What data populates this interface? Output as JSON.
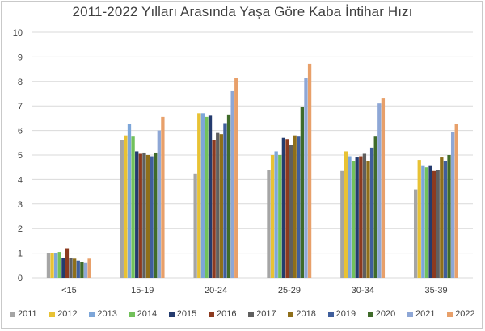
{
  "chart_data": {
    "type": "bar",
    "title": "2011-2022 Yılları Arasında Yaşa Göre Kaba İntihar Hızı",
    "xlabel": "",
    "ylabel": "",
    "ylim": [
      0,
      10
    ],
    "yticks": [
      "0",
      "1",
      "2",
      "3",
      "4",
      "5",
      "6",
      "7",
      "8",
      "9",
      "10"
    ],
    "grid": true,
    "legend_position": "bottom",
    "categories": [
      "<15",
      "15-19",
      "20-24",
      "25-29",
      "30-34",
      "35-39"
    ],
    "series": [
      {
        "name": "2011",
        "color": "#a5a5a5",
        "values": [
          1.0,
          5.6,
          4.25,
          4.4,
          4.35,
          3.6
        ]
      },
      {
        "name": "2012",
        "color": "#e8c234",
        "values": [
          1.0,
          5.8,
          6.7,
          5.0,
          5.15,
          4.8
        ]
      },
      {
        "name": "2013",
        "color": "#7da6d9",
        "values": [
          1.0,
          6.25,
          6.7,
          5.15,
          4.95,
          4.55
        ]
      },
      {
        "name": "2014",
        "color": "#72c15b",
        "values": [
          1.05,
          5.75,
          6.55,
          5.0,
          4.75,
          4.5
        ]
      },
      {
        "name": "2015",
        "color": "#243b6e",
        "values": [
          0.8,
          5.15,
          6.6,
          5.7,
          4.9,
          4.55
        ]
      },
      {
        "name": "2016",
        "color": "#8c3a1f",
        "values": [
          1.2,
          5.05,
          5.6,
          5.65,
          4.95,
          4.35
        ]
      },
      {
        "name": "2017",
        "color": "#5f5f5f",
        "values": [
          0.8,
          5.1,
          5.9,
          5.4,
          5.05,
          4.4
        ]
      },
      {
        "name": "2018",
        "color": "#8f6f1a",
        "values": [
          0.78,
          5.0,
          5.85,
          5.8,
          4.75,
          4.9
        ]
      },
      {
        "name": "2019",
        "color": "#3f5e9c",
        "values": [
          0.7,
          4.95,
          6.3,
          5.75,
          5.3,
          4.75
        ]
      },
      {
        "name": "2020",
        "color": "#3f6b2a",
        "values": [
          0.65,
          5.1,
          6.65,
          6.95,
          5.75,
          5.0
        ]
      },
      {
        "name": "2021",
        "color": "#8ea7d6",
        "values": [
          0.6,
          6.0,
          7.6,
          8.15,
          7.1,
          5.95
        ]
      },
      {
        "name": "2022",
        "color": "#e8a06a",
        "values": [
          0.78,
          6.55,
          8.15,
          8.72,
          7.3,
          6.25
        ]
      }
    ]
  }
}
